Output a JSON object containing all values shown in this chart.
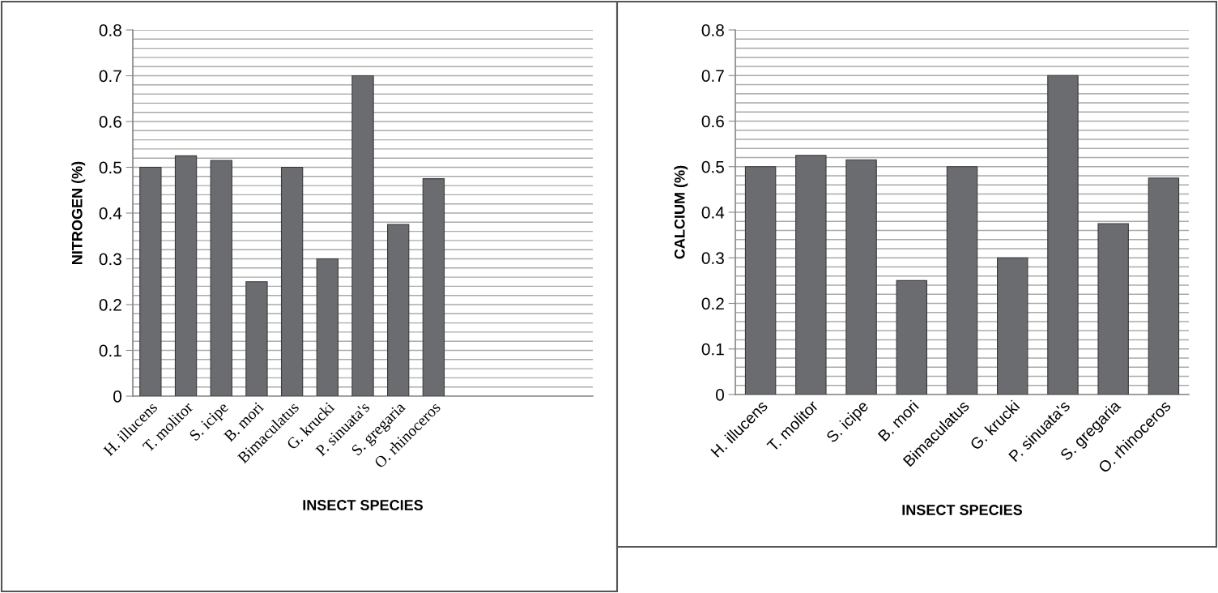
{
  "chart_data": [
    {
      "type": "bar",
      "xlabel": "INSECT SPECIES",
      "ylabel": "NITROGEN (%)",
      "categories": [
        "H. illucens",
        "T. molitor",
        "S. icipe",
        "B. mori",
        "Bimaculatus",
        "G. krucki",
        "P. sinuata's",
        "S. gregaria",
        "O. rhinoceros",
        null,
        null,
        null,
        null
      ],
      "values": [
        0.5,
        0.525,
        0.515,
        0.25,
        0.5,
        0.3,
        0.7,
        0.375,
        0.475,
        null,
        null,
        null,
        null
      ],
      "color": "#6b6c70",
      "ylim": [
        0,
        0.8
      ],
      "yticks": [
        0,
        0.1,
        0.2,
        0.3,
        0.4,
        0.5,
        0.6,
        0.7,
        0.8
      ],
      "grid": "y"
    },
    {
      "type": "bar",
      "xlabel": "INSECT SPECIES",
      "ylabel": "CALCIUM (%)",
      "categories": [
        "H. illucens",
        "T. molitor",
        "S. icipe",
        "B. mori",
        "Bimaculatus",
        "G. krucki",
        "P. sinuata's",
        "S. gregaria",
        "O. rhinoceros"
      ],
      "values": [
        0.5,
        0.525,
        0.515,
        0.25,
        0.5,
        0.3,
        0.7,
        0.375,
        0.475
      ],
      "color": "#6b6c70",
      "ylim": [
        0,
        0.8
      ],
      "yticks": [
        0,
        0.1,
        0.2,
        0.3,
        0.4,
        0.5,
        0.6,
        0.7,
        0.8
      ],
      "grid": "y"
    }
  ]
}
